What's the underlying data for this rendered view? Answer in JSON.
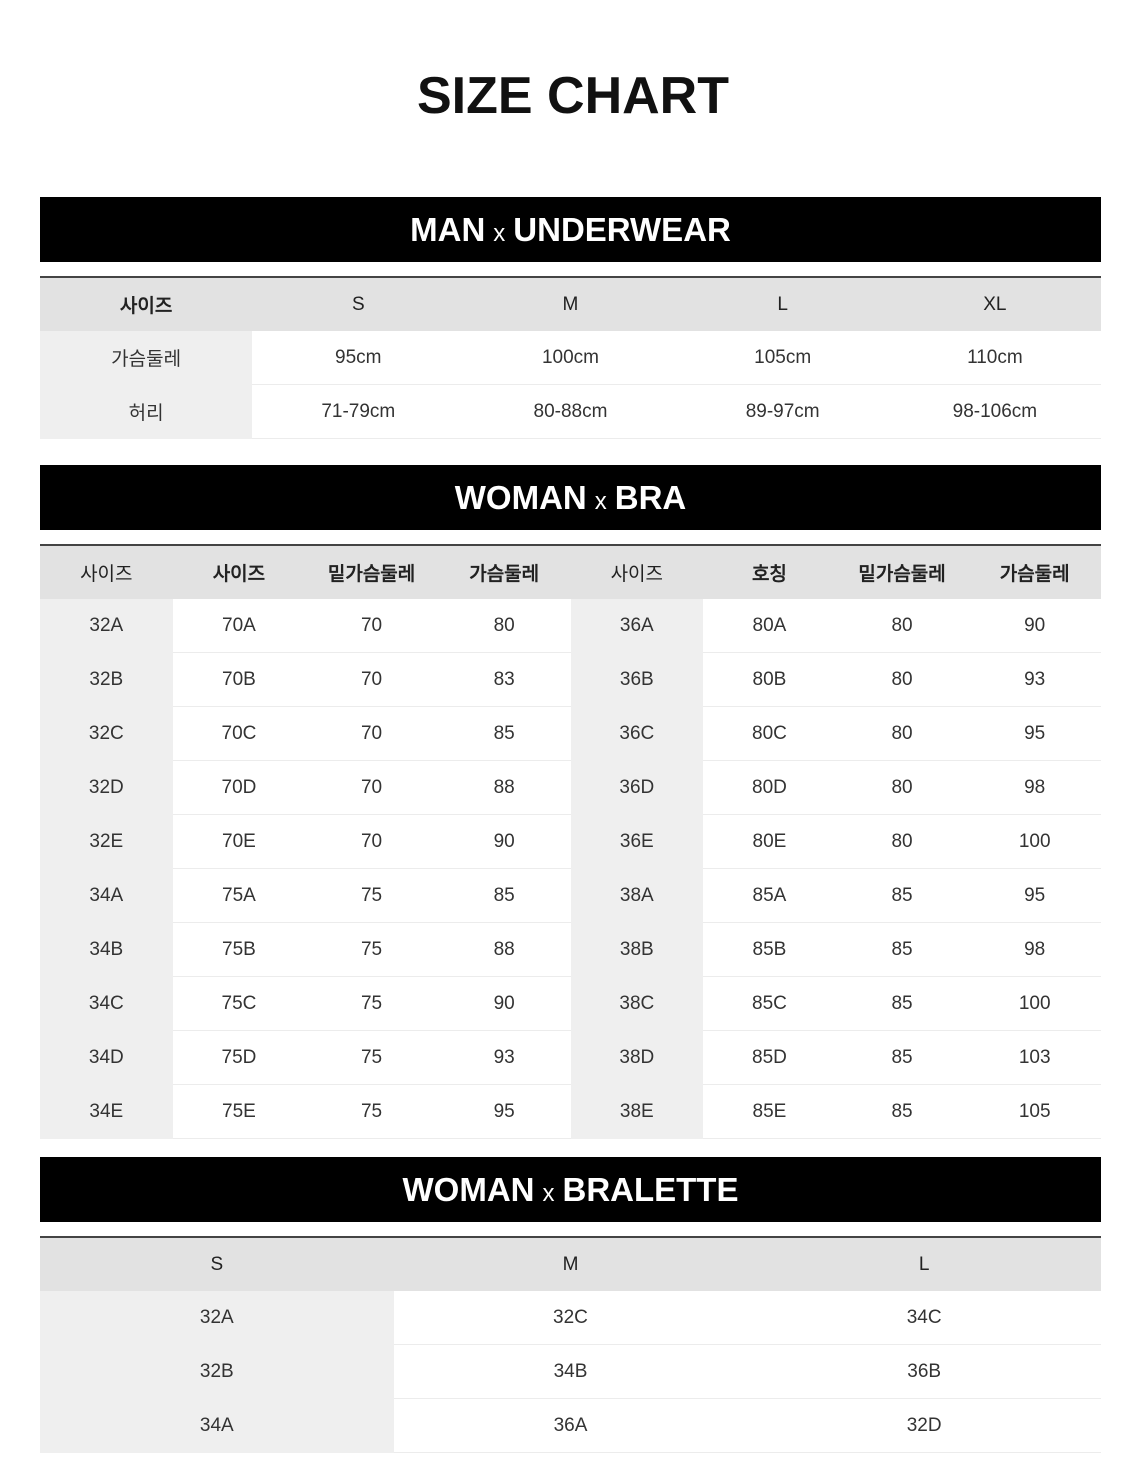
{
  "title": "SIZE CHART",
  "sections": {
    "man": {
      "title_left": "MAN",
      "title_sep": "x",
      "title_right": "UNDERWEAR",
      "headers": [
        "사이즈",
        "S",
        "M",
        "L",
        "XL"
      ],
      "rows": [
        [
          "가슴둘레",
          "95cm",
          "100cm",
          "105cm",
          "110cm"
        ],
        [
          "허리",
          "71-79cm",
          "80-88cm",
          "89-97cm",
          "98-106cm"
        ]
      ]
    },
    "bra": {
      "title_left": "WOMAN",
      "title_sep": "x",
      "title_right": "BRA",
      "headers": [
        "사이즈",
        "사이즈",
        "밑가슴둘레",
        "가슴둘레",
        "사이즈",
        "호칭",
        "밑가슴둘레",
        "가슴둘레"
      ],
      "rows": [
        [
          "32A",
          "70A",
          "70",
          "80",
          "36A",
          "80A",
          "80",
          "90"
        ],
        [
          "32B",
          "70B",
          "70",
          "83",
          "36B",
          "80B",
          "80",
          "93"
        ],
        [
          "32C",
          "70C",
          "70",
          "85",
          "36C",
          "80C",
          "80",
          "95"
        ],
        [
          "32D",
          "70D",
          "70",
          "88",
          "36D",
          "80D",
          "80",
          "98"
        ],
        [
          "32E",
          "70E",
          "70",
          "90",
          "36E",
          "80E",
          "80",
          "100"
        ],
        [
          "34A",
          "75A",
          "75",
          "85",
          "38A",
          "85A",
          "85",
          "95"
        ],
        [
          "34B",
          "75B",
          "75",
          "88",
          "38B",
          "85B",
          "85",
          "98"
        ],
        [
          "34C",
          "75C",
          "75",
          "90",
          "38C",
          "85C",
          "85",
          "100"
        ],
        [
          "34D",
          "75D",
          "75",
          "93",
          "38D",
          "85D",
          "85",
          "103"
        ],
        [
          "34E",
          "75E",
          "75",
          "95",
          "38E",
          "85E",
          "85",
          "105"
        ]
      ]
    },
    "bralette": {
      "title_left": "WOMAN",
      "title_sep": "x",
      "title_right": "BRALETTE",
      "headers": [
        "S",
        "M",
        "L"
      ],
      "rows": [
        [
          "32A",
          "32C",
          "34C"
        ],
        [
          "32B",
          "34B",
          "36B"
        ],
        [
          "34A",
          "36A",
          "32D"
        ]
      ]
    }
  }
}
